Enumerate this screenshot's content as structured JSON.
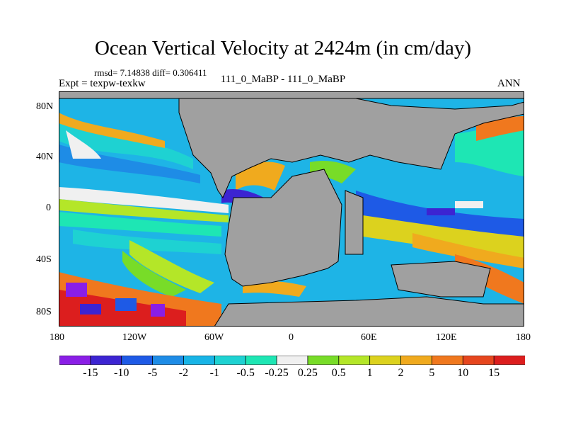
{
  "map": {
    "title": "Ocean Vertical Velocity at 2424m (in cm/day)",
    "stats": "rmsd= 7.14838 diff= 0.306411",
    "left_label": "Expt = texpw-texkw",
    "center_label": "111_0_MaBP - 111_0_MaBP",
    "right_label": "ANN",
    "lat_labels": [
      "80N",
      "40N",
      "0",
      "40S",
      "80S"
    ],
    "lon_labels": [
      "180",
      "120W",
      "60W",
      "0",
      "60E",
      "120E",
      "180"
    ],
    "land_color": "#a0a0a0"
  },
  "colorbar": {
    "labels": [
      "-15",
      "-10",
      "-5",
      "-2",
      "-1",
      "-0.5",
      "-0.25",
      "0.25",
      "0.5",
      "1",
      "2",
      "5",
      "10",
      "15"
    ],
    "colors": [
      "#8a1ee6",
      "#3c24d2",
      "#1e5ae6",
      "#1e8ce6",
      "#18b4e6",
      "#1ed2d2",
      "#1ee6b4",
      "#f0f0f0",
      "#78dc28",
      "#b4e628",
      "#dcd21e",
      "#f0aa1e",
      "#f0781e",
      "#e6461e",
      "#dc1e1e"
    ]
  }
}
